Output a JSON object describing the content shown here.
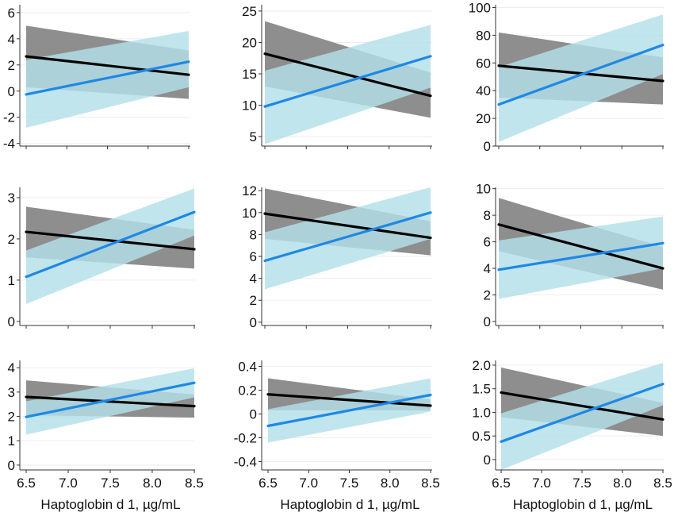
{
  "colors": {
    "black_line": "#000000",
    "black_band": "#8e8e8e",
    "blue_line": "#1e88e5",
    "blue_band": "#b3dfe9",
    "axis": "#333333",
    "grid": "#eeeeee"
  },
  "chart_data": [
    {
      "type": "line",
      "panel": "row1-col1",
      "xlim": [
        6.5,
        8.5
      ],
      "ylim": [
        -4.2,
        6.6
      ],
      "yticks": [
        -4,
        -2,
        0,
        2,
        4,
        6
      ],
      "ytick_labels": [
        "-4",
        "-2",
        "0",
        "2",
        "4",
        "6"
      ],
      "xlabel": "",
      "xtick_labels": [],
      "series": [
        {
          "color": "black",
          "x": [
            6.5,
            8.5
          ],
          "y": [
            2.65,
            1.25
          ],
          "ci_lower": [
            0.3,
            -0.6
          ],
          "ci_upper": [
            5.0,
            3.1
          ]
        },
        {
          "color": "blue",
          "x": [
            6.5,
            8.5
          ],
          "y": [
            -0.25,
            2.25
          ],
          "ci_lower": [
            -2.8,
            0.3
          ],
          "ci_upper": [
            2.4,
            4.6
          ]
        }
      ]
    },
    {
      "type": "line",
      "panel": "row1-col2",
      "xlim": [
        6.5,
        8.5
      ],
      "ylim": [
        3.5,
        26
      ],
      "yticks": [
        5,
        10,
        15,
        20,
        25
      ],
      "ytick_labels": [
        "5",
        "10",
        "15",
        "20",
        "25"
      ],
      "xlabel": "",
      "xtick_labels": [],
      "series": [
        {
          "color": "black",
          "x": [
            6.5,
            8.5
          ],
          "y": [
            18.2,
            11.5
          ],
          "ci_lower": [
            13.0,
            8.0
          ],
          "ci_upper": [
            23.4,
            15.2
          ]
        },
        {
          "color": "blue",
          "x": [
            6.5,
            8.5
          ],
          "y": [
            9.8,
            17.8
          ],
          "ci_lower": [
            3.8,
            12.8
          ],
          "ci_upper": [
            15.5,
            22.8
          ]
        }
      ]
    },
    {
      "type": "line",
      "panel": "row1-col3",
      "xlim": [
        6.5,
        8.5
      ],
      "ylim": [
        0,
        102
      ],
      "yticks": [
        0,
        20,
        40,
        60,
        80,
        100
      ],
      "ytick_labels": [
        "0",
        "20",
        "40",
        "60",
        "80",
        "100"
      ],
      "xlabel": "",
      "xtick_labels": [],
      "series": [
        {
          "color": "black",
          "x": [
            6.5,
            8.5
          ],
          "y": [
            58,
            47
          ],
          "ci_lower": [
            35,
            30
          ],
          "ci_upper": [
            82,
            64
          ]
        },
        {
          "color": "blue",
          "x": [
            6.5,
            8.5
          ],
          "y": [
            30,
            73
          ],
          "ci_lower": [
            3,
            52
          ],
          "ci_upper": [
            57,
            95
          ]
        }
      ]
    },
    {
      "type": "line",
      "panel": "row2-col1",
      "xlim": [
        6.5,
        8.5
      ],
      "ylim": [
        -0.1,
        3.25
      ],
      "yticks": [
        0,
        1,
        2,
        3
      ],
      "ytick_labels": [
        "0",
        "1",
        "2",
        "3"
      ],
      "xlabel": "",
      "xtick_labels": [],
      "series": [
        {
          "color": "black",
          "x": [
            6.5,
            8.5
          ],
          "y": [
            2.17,
            1.75
          ],
          "ci_lower": [
            1.55,
            1.28
          ],
          "ci_upper": [
            2.78,
            2.22
          ]
        },
        {
          "color": "blue",
          "x": [
            6.5,
            8.5
          ],
          "y": [
            1.08,
            2.65
          ],
          "ci_lower": [
            0.42,
            2.08
          ],
          "ci_upper": [
            1.72,
            3.22
          ]
        }
      ]
    },
    {
      "type": "line",
      "panel": "row2-col2",
      "xlim": [
        6.5,
        8.5
      ],
      "ylim": [
        -0.3,
        12.3
      ],
      "yticks": [
        0,
        2,
        4,
        6,
        8,
        10,
        12
      ],
      "ytick_labels": [
        "0",
        "2",
        "4",
        "6",
        "8",
        "10",
        "12"
      ],
      "xlabel": "",
      "xtick_labels": [],
      "series": [
        {
          "color": "black",
          "x": [
            6.5,
            8.5
          ],
          "y": [
            9.9,
            7.7
          ],
          "ci_lower": [
            7.6,
            6.1
          ],
          "ci_upper": [
            12.2,
            9.2
          ]
        },
        {
          "color": "blue",
          "x": [
            6.5,
            8.5
          ],
          "y": [
            5.6,
            10.0
          ],
          "ci_lower": [
            3.0,
            7.6
          ],
          "ci_upper": [
            8.2,
            12.3
          ]
        }
      ]
    },
    {
      "type": "line",
      "panel": "row2-col3",
      "xlim": [
        6.5,
        8.5
      ],
      "ylim": [
        -0.3,
        10.1
      ],
      "yticks": [
        0,
        2,
        4,
        6,
        8,
        10
      ],
      "ytick_labels": [
        "0",
        "2",
        "4",
        "6",
        "8",
        "10"
      ],
      "xlabel": "",
      "xtick_labels": [],
      "series": [
        {
          "color": "black",
          "x": [
            6.5,
            8.5
          ],
          "y": [
            7.3,
            4.0
          ],
          "ci_lower": [
            5.3,
            2.4
          ],
          "ci_upper": [
            9.3,
            5.6
          ]
        },
        {
          "color": "blue",
          "x": [
            6.5,
            8.5
          ],
          "y": [
            3.9,
            5.9
          ],
          "ci_lower": [
            1.7,
            4.0
          ],
          "ci_upper": [
            6.1,
            7.9
          ]
        }
      ]
    },
    {
      "type": "line",
      "panel": "row3-col1",
      "xlim": [
        6.5,
        8.5
      ],
      "ylim": [
        -0.2,
        4.3
      ],
      "yticks": [
        0,
        1,
        2,
        3,
        4
      ],
      "ytick_labels": [
        "0",
        "1",
        "2",
        "3",
        "4"
      ],
      "xticks": [
        6.5,
        7.0,
        7.5,
        8.0,
        8.5
      ],
      "xtick_labels": [
        "6.5",
        "7.0",
        "7.5",
        "8.0",
        "8.5"
      ],
      "xlabel": "Haptoglobin d 1, µg/mL",
      "series": [
        {
          "color": "black",
          "x": [
            6.5,
            8.5
          ],
          "y": [
            2.8,
            2.42
          ],
          "ci_lower": [
            2.05,
            1.95
          ],
          "ci_upper": [
            3.48,
            2.9
          ]
        },
        {
          "color": "blue",
          "x": [
            6.5,
            8.5
          ],
          "y": [
            1.98,
            3.38
          ],
          "ci_lower": [
            1.25,
            2.78
          ],
          "ci_upper": [
            2.62,
            3.98
          ]
        }
      ]
    },
    {
      "type": "line",
      "panel": "row3-col2",
      "xlim": [
        6.5,
        8.5
      ],
      "ylim": [
        -0.47,
        0.45
      ],
      "yticks": [
        -0.4,
        -0.2,
        0,
        0.2,
        0.4
      ],
      "ytick_labels": [
        "-0.4",
        "-0.2",
        "0",
        "0.2",
        "0.4"
      ],
      "xticks": [
        6.5,
        7.0,
        7.5,
        8.0,
        8.5
      ],
      "xtick_labels": [
        "6.5",
        "7.0",
        "7.5",
        "8.0",
        "8.5"
      ],
      "xlabel": "Haptoglobin d 1, µg/mL",
      "series": [
        {
          "color": "black",
          "x": [
            6.5,
            8.5
          ],
          "y": [
            0.165,
            0.07
          ],
          "ci_lower": [
            0.03,
            0.03
          ],
          "ci_upper": [
            0.3,
            0.12
          ]
        },
        {
          "color": "blue",
          "x": [
            6.5,
            8.5
          ],
          "y": [
            -0.1,
            0.16
          ],
          "ci_lower": [
            -0.24,
            0.02
          ],
          "ci_upper": [
            0.04,
            0.3
          ]
        }
      ]
    },
    {
      "type": "line",
      "panel": "row3-col3",
      "xlim": [
        6.5,
        8.5
      ],
      "ylim": [
        -0.22,
        2.1
      ],
      "yticks": [
        0,
        0.5,
        1.0,
        1.5,
        2.0
      ],
      "ytick_labels": [
        "0",
        "0.5",
        "1.0",
        "1.5",
        "2.0"
      ],
      "xticks": [
        6.5,
        7.0,
        7.5,
        8.0,
        8.5
      ],
      "xtick_labels": [
        "6.5",
        "7.0",
        "7.5",
        "8.0",
        "8.5"
      ],
      "xlabel": "Haptoglobin d 1, µg/mL",
      "series": [
        {
          "color": "black",
          "x": [
            6.5,
            8.5
          ],
          "y": [
            1.42,
            0.85
          ],
          "ci_lower": [
            0.9,
            0.5
          ],
          "ci_upper": [
            1.95,
            1.2
          ]
        },
        {
          "color": "blue",
          "x": [
            6.5,
            8.5
          ],
          "y": [
            0.38,
            1.6
          ],
          "ci_lower": [
            -0.22,
            1.15
          ],
          "ci_upper": [
            0.98,
            2.05
          ]
        }
      ]
    }
  ]
}
